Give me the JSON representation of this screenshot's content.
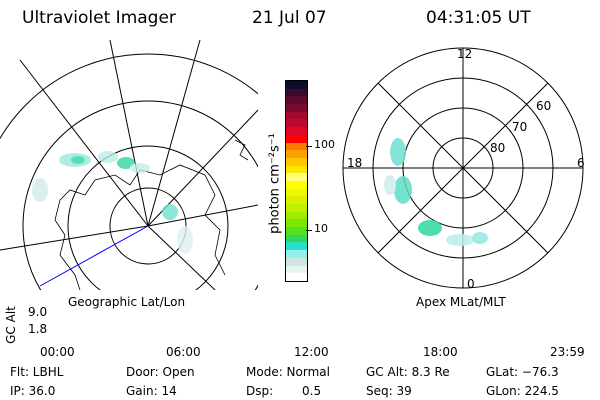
{
  "header": {
    "instrument": "Ultraviolet Imager",
    "date": "21 Jul 07",
    "time": "04:31:05 UT"
  },
  "colorbar": {
    "label": "photon cm⁻²s⁻¹",
    "ticks": [
      "100",
      "10"
    ],
    "colors": [
      "#0c0c2c",
      "#3a0a2c",
      "#5c0a30",
      "#7c0a30",
      "#a00a30",
      "#c0082a",
      "#e0082a",
      "#ff0000",
      "#ff7800",
      "#ffa000",
      "#ffc800",
      "#ffe600",
      "#ffff80",
      "#ffff00",
      "#f0f800",
      "#dcf000",
      "#c0f000",
      "#a0ec00",
      "#78e800",
      "#58e020",
      "#30d858",
      "#28e0c8",
      "#90f0f0",
      "#d0e4e4",
      "#e8f4f0",
      "#ffffff"
    ]
  },
  "left_map": {
    "label": "Geographic Lat/Lon"
  },
  "right_map": {
    "label": "Apex MLat/MLT",
    "mlt_labels": [
      "12",
      "6",
      "0",
      "18"
    ],
    "lat_labels": [
      "60",
      "70",
      "80"
    ]
  },
  "timeline": {
    "ylabel": "GC Alt",
    "yticks": [
      "9.0",
      "1.8"
    ],
    "xticks": [
      "00:00",
      "06:00",
      "12:00",
      "18:00",
      "23:59"
    ],
    "current_time_fraction": 0.188
  },
  "status": {
    "flt": "Flt: LBHL",
    "ip": "IP: 36.0",
    "door": "Door: Open",
    "gain": "Gain: 14",
    "mode": "Mode: Normal",
    "dsp_label": "Dsp:",
    "dsp_value": "0.5",
    "gcalt": "GC Alt: 8.3 Re",
    "seq": "Seq: 39",
    "glat": "GLat: −76.3",
    "glon": "GLon: 224.5"
  }
}
